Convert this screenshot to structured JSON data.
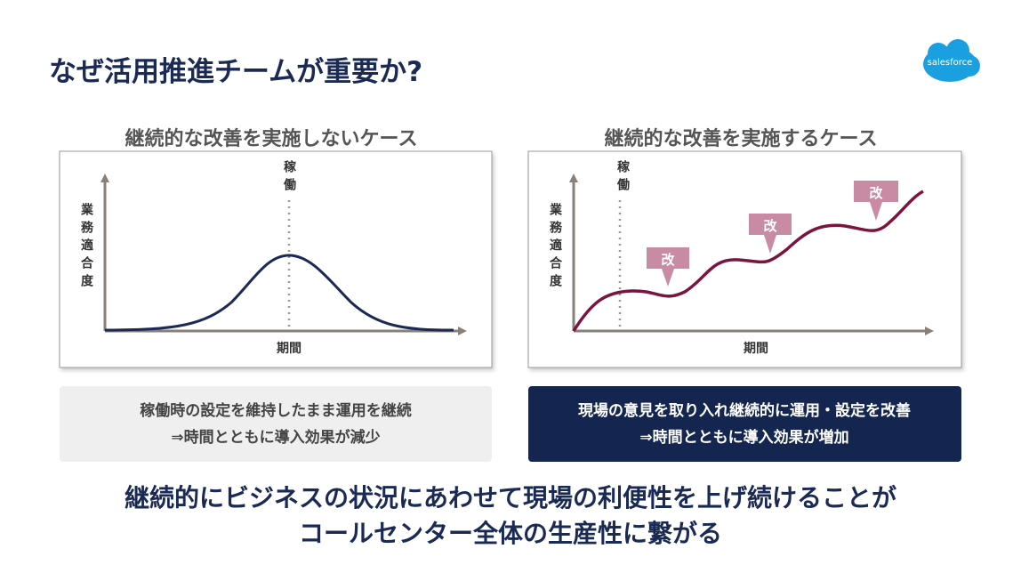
{
  "title": "なぜ活用推進チームが重要か?",
  "logo": "salesforce",
  "panels": [
    {
      "heading": "継続的な改善を実施しないケース",
      "y_label": "業務適合度",
      "x_label": "期間",
      "marker_label": "稼働",
      "caption": [
        "稼働時の設定を維持したまま運用を継続",
        "⇒時間とともに導入効果が減少"
      ]
    },
    {
      "heading": "継続的な改善を実施するケース",
      "y_label": "業務適合度",
      "x_label": "期間",
      "marker_label": "稼働",
      "callouts": [
        "改",
        "改",
        "改"
      ],
      "caption": [
        "現場の意見を取り入れ継続的に運用・設定を改善",
        "⇒時間とともに導入効果が増加"
      ]
    }
  ],
  "conclusion": [
    "継続的にビジネスの状況にあわせて現場の利便性を上げ続けることが",
    "コールセンター全体の生産性に繋がる"
  ]
}
